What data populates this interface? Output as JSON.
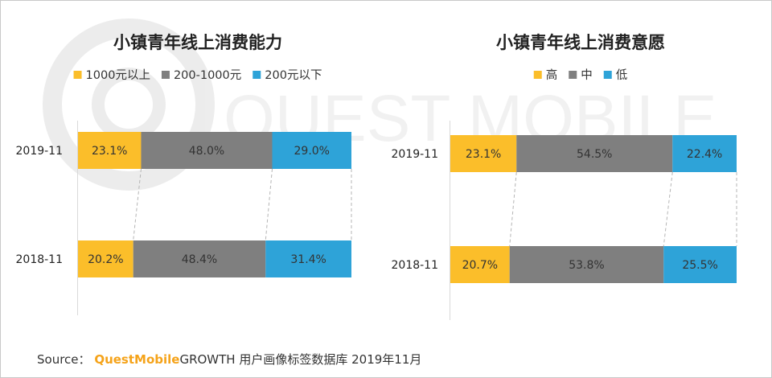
{
  "chart_data": [
    {
      "type": "bar",
      "orientation": "horizontal",
      "stacked": true,
      "percent": true,
      "title": "小镇青年线上消费能力",
      "categories": [
        "2019-11",
        "2018-11"
      ],
      "series": [
        {
          "name": "1000元以上",
          "color": "#fbbe2a",
          "values": [
            23.1,
            20.2
          ],
          "labels": [
            "23.1%",
            "20.2%"
          ]
        },
        {
          "name": "200-1000元",
          "color": "#7f7f7f",
          "values": [
            48.0,
            48.4
          ],
          "labels": [
            "48.0%",
            "48.4%"
          ]
        },
        {
          "name": "200元以下",
          "color": "#2ea3d8",
          "values": [
            29.0,
            31.4
          ],
          "labels": [
            "29.0%",
            "31.4%"
          ]
        }
      ],
      "legend_position": "top"
    },
    {
      "type": "bar",
      "orientation": "horizontal",
      "stacked": true,
      "percent": true,
      "title": "小镇青年线上消费意愿",
      "categories": [
        "2019-11",
        "2018-11"
      ],
      "series": [
        {
          "name": "高",
          "color": "#fbbe2a",
          "values": [
            23.1,
            20.7
          ],
          "labels": [
            "23.1%",
            "20.7%"
          ]
        },
        {
          "name": "中",
          "color": "#7f7f7f",
          "values": [
            54.5,
            53.8
          ],
          "labels": [
            "54.5%",
            "53.8%"
          ]
        },
        {
          "name": "低",
          "color": "#2ea3d8",
          "values": [
            22.4,
            25.5
          ],
          "labels": [
            "22.4%",
            "25.5%"
          ]
        }
      ],
      "legend_position": "top"
    }
  ],
  "source": {
    "prefix": "Source：",
    "brand": "QuestMobile",
    "rest": "GROWTH 用户画像标签数据库 2019年11月"
  },
  "watermark": {
    "text": "QUEST MOBILE"
  }
}
